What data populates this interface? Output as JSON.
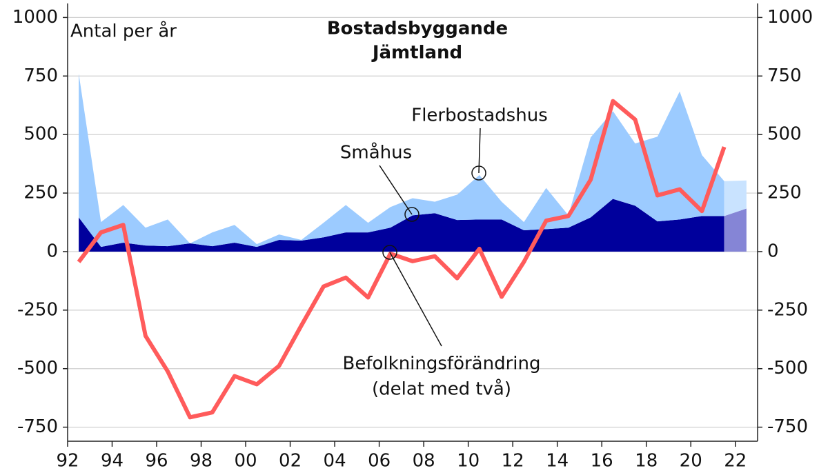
{
  "chart_data": {
    "type": "area_line",
    "title_lines": [
      "Bostadsbyggande",
      "Jämtland"
    ],
    "y_axis_label": "Antal per år",
    "x": [
      1992.5,
      1993.5,
      1994.5,
      1995.5,
      1996.5,
      1997.5,
      1998.5,
      1999.5,
      2000.5,
      2001.5,
      2002.5,
      2003.5,
      2004.5,
      2005.5,
      2006.5,
      2007.5,
      2008.5,
      2009.5,
      2010.5,
      2011.5,
      2012.5,
      2013.5,
      2014.5,
      2015.5,
      2016.5,
      2017.5,
      2018.5,
      2019.5,
      2020.5,
      2021.5,
      2022.5
    ],
    "forecast_start": 2021.5,
    "series": [
      {
        "name": "Småhus",
        "kind": "stacked_area",
        "color": "#00009c",
        "forecast_color": "#8585d6",
        "values": [
          146,
          20,
          38,
          26,
          23,
          35,
          23,
          38,
          20,
          50,
          47,
          61,
          82,
          82,
          102,
          155,
          164,
          135,
          137,
          137,
          91,
          96,
          102,
          146,
          225,
          196,
          129,
          137,
          152,
          152,
          184
        ]
      },
      {
        "name": "Flerbostadshus",
        "kind": "stacked_area",
        "color": "#9ccbff",
        "forecast_color": "#c9e3ff",
        "values": [
          614,
          106,
          161,
          76,
          114,
          0,
          59,
          76,
          12,
          23,
          3,
          62,
          117,
          41,
          88,
          73,
          49,
          108,
          190,
          76,
          35,
          176,
          53,
          342,
          375,
          266,
          362,
          547,
          260,
          149,
          120
        ]
      },
      {
        "name": "Befolkningsförändring",
        "subname": "(delat med två)",
        "kind": "line",
        "color": "#ff5b5b",
        "values": [
          -44,
          82,
          114,
          -360,
          -512,
          -708,
          -687,
          -532,
          -567,
          -488,
          -316,
          -149,
          -111,
          -196,
          -9,
          -41,
          -20,
          -114,
          12,
          -193,
          -44,
          132,
          152,
          307,
          643,
          564,
          240,
          266,
          173,
          447,
          null
        ]
      }
    ],
    "xlim": [
      1992,
      2023
    ],
    "xticks": [
      {
        "value": 1992,
        "label": "92"
      },
      {
        "value": 1994,
        "label": "94"
      },
      {
        "value": 1996,
        "label": "96"
      },
      {
        "value": 1998,
        "label": "98"
      },
      {
        "value": 2000,
        "label": "00"
      },
      {
        "value": 2002,
        "label": "02"
      },
      {
        "value": 2004,
        "label": "04"
      },
      {
        "value": 2006,
        "label": "06"
      },
      {
        "value": 2008,
        "label": "08"
      },
      {
        "value": 2010,
        "label": "10"
      },
      {
        "value": 2012,
        "label": "12"
      },
      {
        "value": 2014,
        "label": "14"
      },
      {
        "value": 2016,
        "label": "16"
      },
      {
        "value": 2018,
        "label": "18"
      },
      {
        "value": 2020,
        "label": "20"
      },
      {
        "value": 2022,
        "label": "22"
      }
    ],
    "ylim": [
      -810,
      1060
    ],
    "yticks": [
      -750,
      -500,
      -250,
      0,
      250,
      500,
      750,
      1000
    ],
    "y2lim": [
      -810,
      1060
    ],
    "y2ticks": [
      -750,
      -500,
      -250,
      0,
      250,
      500,
      750,
      1000
    ],
    "grid": true
  }
}
